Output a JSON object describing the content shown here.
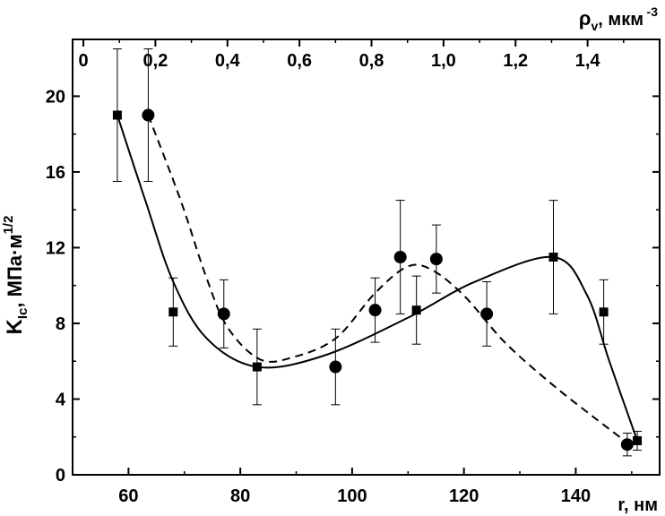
{
  "chart_data": {
    "type": "scatter",
    "xlabel": "r, нм",
    "ylabel": "K, МПа·м",
    "top_xlabel": "ρ, мкм",
    "ylim": [
      0,
      23
    ],
    "xlim": [
      50,
      155
    ],
    "top_xlim": [
      -0.03,
      1.6
    ],
    "x_ticks": [
      60,
      80,
      100,
      120,
      140
    ],
    "y_ticks": [
      0,
      4,
      8,
      12,
      16,
      20
    ],
    "top_ticks": [
      0,
      0.2,
      0.4,
      0.6,
      0.8,
      1.0,
      1.2,
      1.4
    ],
    "x_tick_labels": [
      "60",
      "80",
      "100",
      "120",
      "140"
    ],
    "y_tick_labels": [
      "0",
      "4",
      "8",
      "12",
      "16",
      "20"
    ],
    "top_tick_labels": [
      "0",
      "0,2",
      "0,4",
      "0,6",
      "0,8",
      "1,0",
      "1,2",
      "1,4"
    ],
    "ylabel_sub": "Ic",
    "ylabel_sup": "1/2",
    "top_xlabel_sub": "v",
    "top_xlabel_sup": "-3",
    "series": [
      {
        "marker": "square",
        "axis": "bottom",
        "x": [
          58,
          68,
          83,
          111.5,
          136,
          145,
          151
        ],
        "y": [
          19.0,
          8.6,
          5.7,
          8.7,
          11.5,
          8.6,
          1.8
        ],
        "err": [
          3.5,
          1.8,
          2.0,
          1.8,
          3.0,
          1.7,
          0.5
        ],
        "line": "solid"
      },
      {
        "marker": "circle",
        "axis": "top",
        "x": [
          0.18,
          0.39,
          0.7,
          0.81,
          0.88,
          0.98,
          1.12,
          1.51
        ],
        "y": [
          19.0,
          8.5,
          5.7,
          8.7,
          11.5,
          11.4,
          8.5,
          1.6
        ],
        "err": [
          3.5,
          1.8,
          2.0,
          1.7,
          3.0,
          1.8,
          1.7,
          0.6
        ],
        "line": "dashed"
      }
    ],
    "grid": false,
    "legend": "none"
  }
}
